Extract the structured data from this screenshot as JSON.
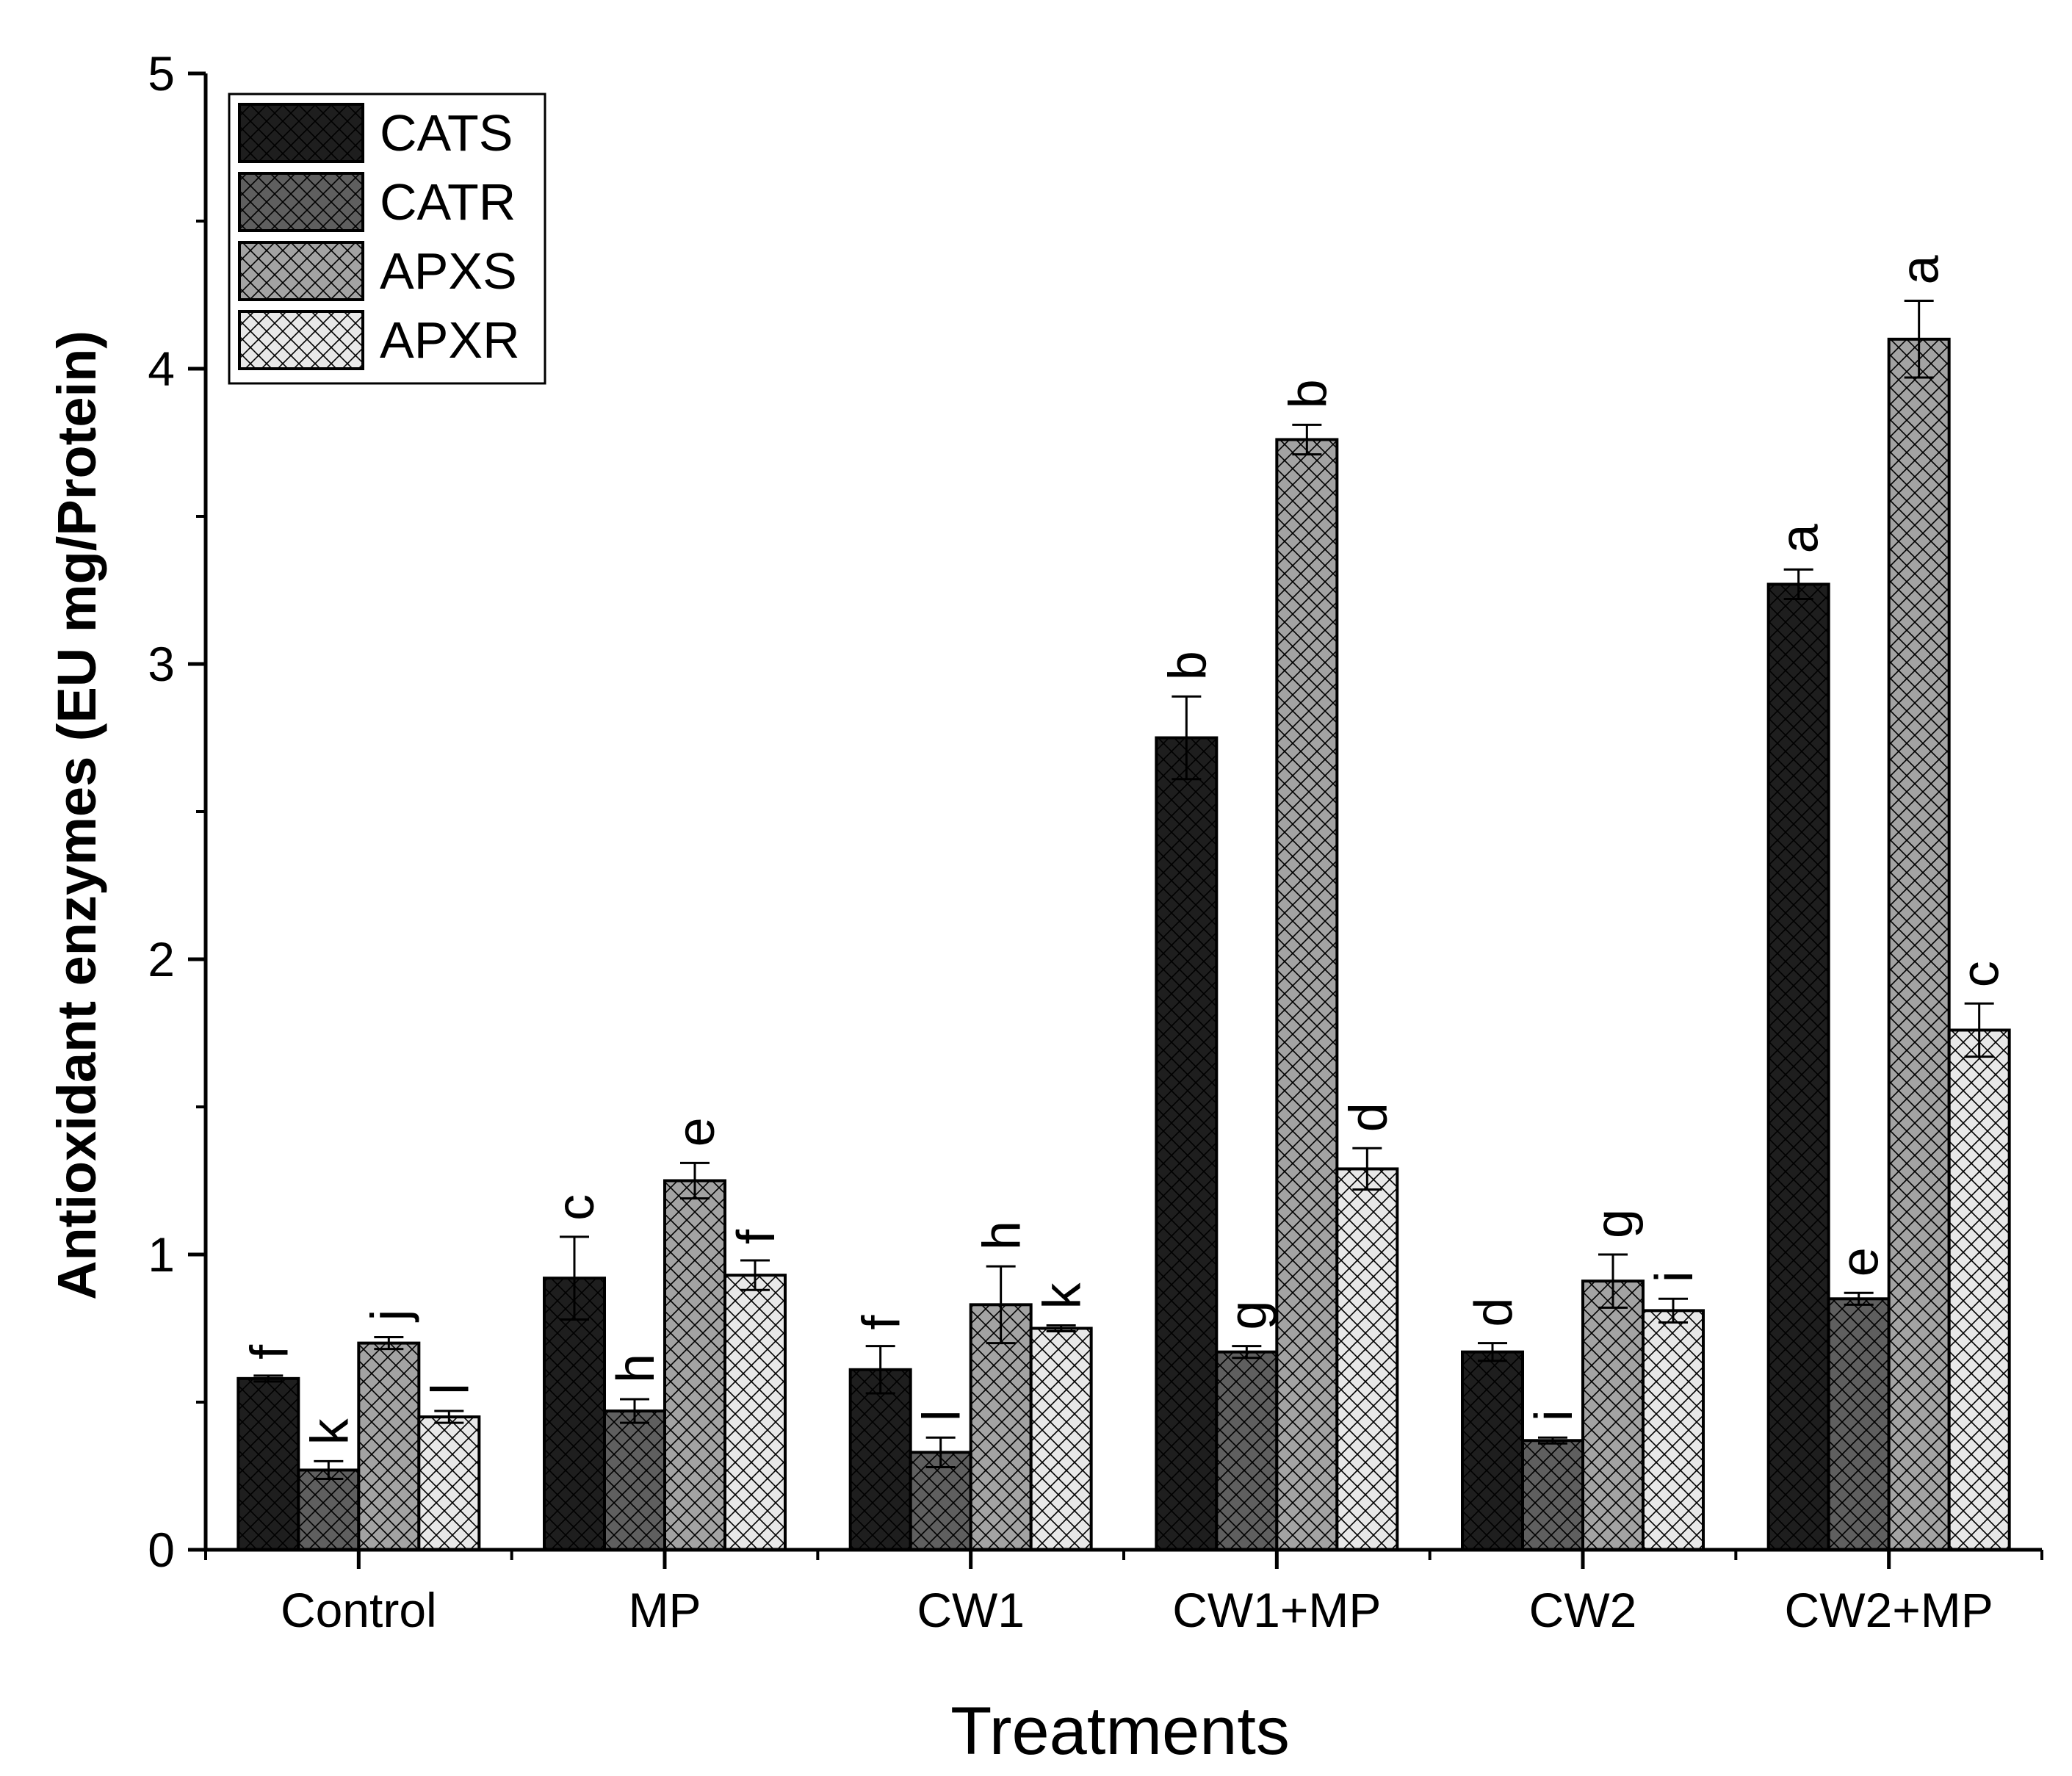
{
  "chart_data": {
    "type": "bar",
    "title": "",
    "xlabel": "Treatments",
    "ylabel": "Antioxidant enzymes (EU mg/Protein)",
    "ylim": [
      0,
      5
    ],
    "yticks": [
      "0",
      "1",
      "2",
      "3",
      "4",
      "5"
    ],
    "categories": [
      "Control",
      "MP",
      "CW1",
      "CW1+MP",
      "CW2",
      "CW2+MP"
    ],
    "legend_position": "top-left",
    "series": [
      {
        "name": "CATS",
        "color": "#1e1e1e",
        "values": [
          0.58,
          0.92,
          0.61,
          2.75,
          0.67,
          3.27
        ],
        "errors": [
          0.01,
          0.14,
          0.08,
          0.14,
          0.03,
          0.05
        ],
        "letters": [
          "f",
          "c",
          "f",
          "b",
          "d",
          "a"
        ]
      },
      {
        "name": "CATR",
        "color": "#5f5f5f",
        "values": [
          0.27,
          0.47,
          0.33,
          0.67,
          0.37,
          0.85
        ],
        "errors": [
          0.03,
          0.04,
          0.05,
          0.02,
          0.01,
          0.02
        ],
        "letters": [
          "k",
          "h",
          "l",
          "g",
          "i",
          "e"
        ]
      },
      {
        "name": "APXS",
        "color": "#a3a3a3",
        "values": [
          0.7,
          1.25,
          0.83,
          3.76,
          0.91,
          4.1
        ],
        "errors": [
          0.02,
          0.06,
          0.13,
          0.05,
          0.09,
          0.13
        ],
        "letters": [
          "j",
          "e",
          "h",
          "b",
          "g",
          "a"
        ]
      },
      {
        "name": "APXR",
        "color": "#e8e8e8",
        "values": [
          0.45,
          0.93,
          0.75,
          1.29,
          0.81,
          1.76
        ],
        "errors": [
          0.02,
          0.05,
          0.01,
          0.07,
          0.04,
          0.09
        ],
        "letters": [
          "l",
          "f",
          "k",
          "d",
          "i",
          "c"
        ]
      }
    ]
  }
}
